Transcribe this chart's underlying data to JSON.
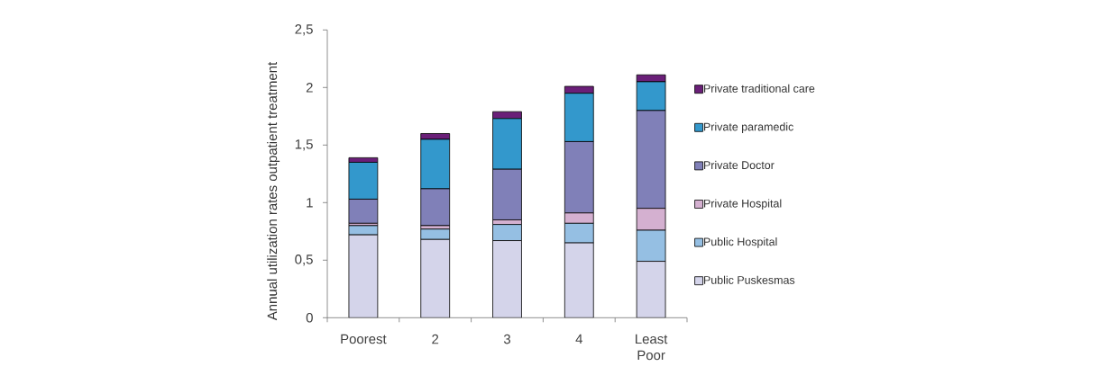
{
  "chart_data": {
    "type": "bar",
    "stacked": true,
    "ylabel": "Annual utilization rates outpatient treatment",
    "categories": [
      "Poorest",
      "2",
      "3",
      "4",
      "Least Poor"
    ],
    "series": [
      {
        "name": "Public Puskesmas",
        "color": "#d4d4ea",
        "values": [
          0.72,
          0.68,
          0.67,
          0.65,
          0.49
        ]
      },
      {
        "name": "Public Hospital",
        "color": "#95bfe3",
        "values": [
          0.08,
          0.09,
          0.14,
          0.17,
          0.27
        ]
      },
      {
        "name": "Private Hospital",
        "color": "#d4b0d0",
        "values": [
          0.02,
          0.03,
          0.04,
          0.09,
          0.19
        ]
      },
      {
        "name": "Private Doctor",
        "color": "#8080b8",
        "values": [
          0.21,
          0.32,
          0.44,
          0.62,
          0.85
        ]
      },
      {
        "name": "Private paramedic",
        "color": "#3398cc",
        "values": [
          0.32,
          0.43,
          0.44,
          0.42,
          0.25
        ]
      },
      {
        "name": "Private traditional care",
        "color": "#6a1f78",
        "values": [
          0.04,
          0.05,
          0.06,
          0.06,
          0.06
        ]
      }
    ],
    "ylim": [
      0,
      2.5
    ],
    "yticks": [
      0,
      {
        "value": 0.5,
        "label": "0,5"
      },
      1,
      {
        "value": 1.5,
        "label": "1,5"
      },
      2,
      {
        "value": 2.5,
        "label": "2,5"
      }
    ],
    "legend": "right"
  }
}
